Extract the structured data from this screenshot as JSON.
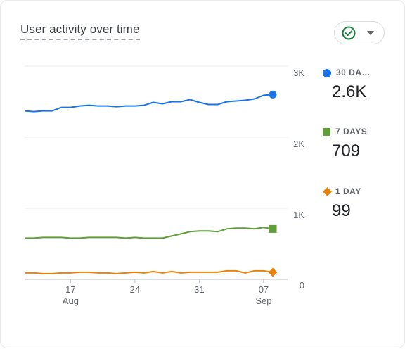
{
  "card": {
    "title": "User activity over time"
  },
  "compare": {
    "icon": "check-circle-icon",
    "caret": "caret-down-icon"
  },
  "legend": [
    {
      "label": "30 DA…",
      "value": "2.6K",
      "color": "#1a73e8",
      "marker": "circle"
    },
    {
      "label": "7 DAYS",
      "value": "709",
      "color": "#5f9e38",
      "marker": "square"
    },
    {
      "label": "1 DAY",
      "value": "99",
      "color": "#e8820c",
      "marker": "diamond"
    }
  ],
  "chart_data": {
    "type": "line",
    "title": "User activity over time",
    "y_ticks": [
      "3K",
      "2K",
      "1K",
      "0"
    ],
    "ylim": [
      0,
      3000
    ],
    "x_ticks": [
      {
        "day": "17",
        "month": "Aug"
      },
      {
        "day": "24",
        "month": ""
      },
      {
        "day": "31",
        "month": ""
      },
      {
        "day": "07",
        "month": "Sep"
      }
    ],
    "x_tick_index": [
      5,
      12,
      19,
      26
    ],
    "grid": true,
    "legend_position": "right",
    "series": [
      {
        "name": "30 DA…",
        "color": "#1a73e8",
        "marker": "circle",
        "values": [
          2370,
          2360,
          2370,
          2370,
          2420,
          2420,
          2440,
          2450,
          2440,
          2440,
          2430,
          2440,
          2440,
          2450,
          2490,
          2470,
          2500,
          2500,
          2530,
          2490,
          2460,
          2460,
          2500,
          2510,
          2520,
          2540,
          2590,
          2600
        ]
      },
      {
        "name": "7 DAYS",
        "color": "#5f9e38",
        "marker": "square",
        "values": [
          580,
          580,
          590,
          590,
          590,
          580,
          580,
          590,
          590,
          590,
          590,
          580,
          590,
          580,
          580,
          580,
          610,
          640,
          670,
          680,
          680,
          670,
          710,
          720,
          720,
          710,
          730,
          709
        ]
      },
      {
        "name": "1 DAY",
        "color": "#e8820c",
        "marker": "diamond",
        "values": [
          90,
          90,
          80,
          80,
          90,
          90,
          100,
          100,
          90,
          90,
          80,
          90,
          100,
          90,
          110,
          90,
          110,
          90,
          100,
          100,
          100,
          100,
          120,
          120,
          90,
          120,
          120,
          99
        ]
      }
    ]
  }
}
